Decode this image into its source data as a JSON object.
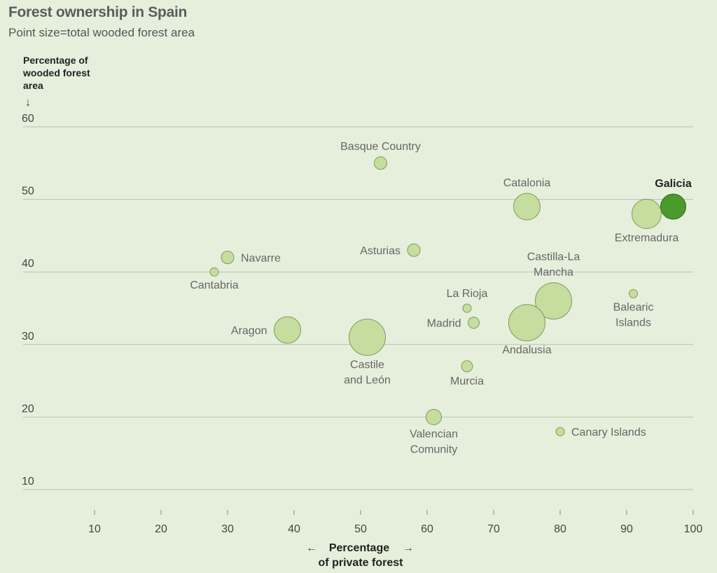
{
  "title": "Forest ownership in Spain",
  "subtitle": "Point size=total wooded forest area",
  "colors": {
    "background": "#e6efdc",
    "point_fill": "#c6dda0",
    "point_stroke": "#7f9a57",
    "highlight_fill": "#4a9a2c",
    "highlight_stroke": "#2f6a18",
    "grid": "#b8c2ad"
  },
  "chart_data": {
    "type": "scatter",
    "title": "Forest ownership in Spain",
    "subtitle": "Point size=total wooded forest area",
    "xlabel": [
      "Percentage",
      "of private forest"
    ],
    "ylabel": [
      "Percentage of",
      "wooded forest",
      "area"
    ],
    "xlim": [
      0,
      100
    ],
    "ylim": [
      10,
      60
    ],
    "x_ticks": [
      "10",
      "20",
      "30",
      "40",
      "50",
      "60",
      "70",
      "80",
      "90",
      "100"
    ],
    "y_ticks": [
      "60",
      "50",
      "40",
      "30",
      "20",
      "10"
    ],
    "x_tick_values": [
      10,
      20,
      30,
      40,
      50,
      60,
      70,
      80,
      90,
      100
    ],
    "y_tick_values": [
      60,
      50,
      40,
      30,
      20,
      10
    ],
    "grid": true,
    "highlight": "Galicia",
    "points": [
      {
        "label": [
          "Basque Country"
        ],
        "x": 53,
        "y": 55,
        "size": 9,
        "label_pos": "above"
      },
      {
        "label": [
          "Catalonia"
        ],
        "x": 75,
        "y": 49,
        "size": 19,
        "label_pos": "above"
      },
      {
        "label": [
          "Galicia"
        ],
        "x": 97,
        "y": 49,
        "size": 18,
        "label_pos": "above",
        "highlight": true
      },
      {
        "label": [
          "Extremadura"
        ],
        "x": 93,
        "y": 48,
        "size": 21,
        "label_pos": "below"
      },
      {
        "label": [
          "Navarre"
        ],
        "x": 30,
        "y": 42,
        "size": 9,
        "label_pos": "right"
      },
      {
        "label": [
          "Asturias"
        ],
        "x": 58,
        "y": 43,
        "size": 9,
        "label_pos": "left"
      },
      {
        "label": [
          "Cantabria"
        ],
        "x": 28,
        "y": 40,
        "size": 6,
        "label_pos": "below"
      },
      {
        "label": [
          "Castilla-La",
          "Mancha"
        ],
        "x": 79,
        "y": 36,
        "size": 26,
        "label_pos": "above"
      },
      {
        "label": [
          "Balearic",
          "Islands"
        ],
        "x": 91,
        "y": 37,
        "size": 6,
        "label_pos": "below"
      },
      {
        "label": [
          "La Rioja"
        ],
        "x": 66,
        "y": 35,
        "size": 6,
        "label_pos": "above"
      },
      {
        "label": [
          "Madrid"
        ],
        "x": 67,
        "y": 33,
        "size": 8,
        "label_pos": "left"
      },
      {
        "label": [
          "Andalusia"
        ],
        "x": 75,
        "y": 33,
        "size": 26,
        "label_pos": "below"
      },
      {
        "label": [
          "Aragon"
        ],
        "x": 39,
        "y": 32,
        "size": 19,
        "label_pos": "left"
      },
      {
        "label": [
          "Castile",
          "and León"
        ],
        "x": 51,
        "y": 31,
        "size": 26,
        "label_pos": "below"
      },
      {
        "label": [
          "Murcia"
        ],
        "x": 66,
        "y": 27,
        "size": 8,
        "label_pos": "below"
      },
      {
        "label": [
          "Valencian",
          "Comunity"
        ],
        "x": 61,
        "y": 20,
        "size": 11,
        "label_pos": "below"
      },
      {
        "label": [
          "Canary Islands"
        ],
        "x": 80,
        "y": 18,
        "size": 6,
        "label_pos": "right"
      }
    ]
  }
}
